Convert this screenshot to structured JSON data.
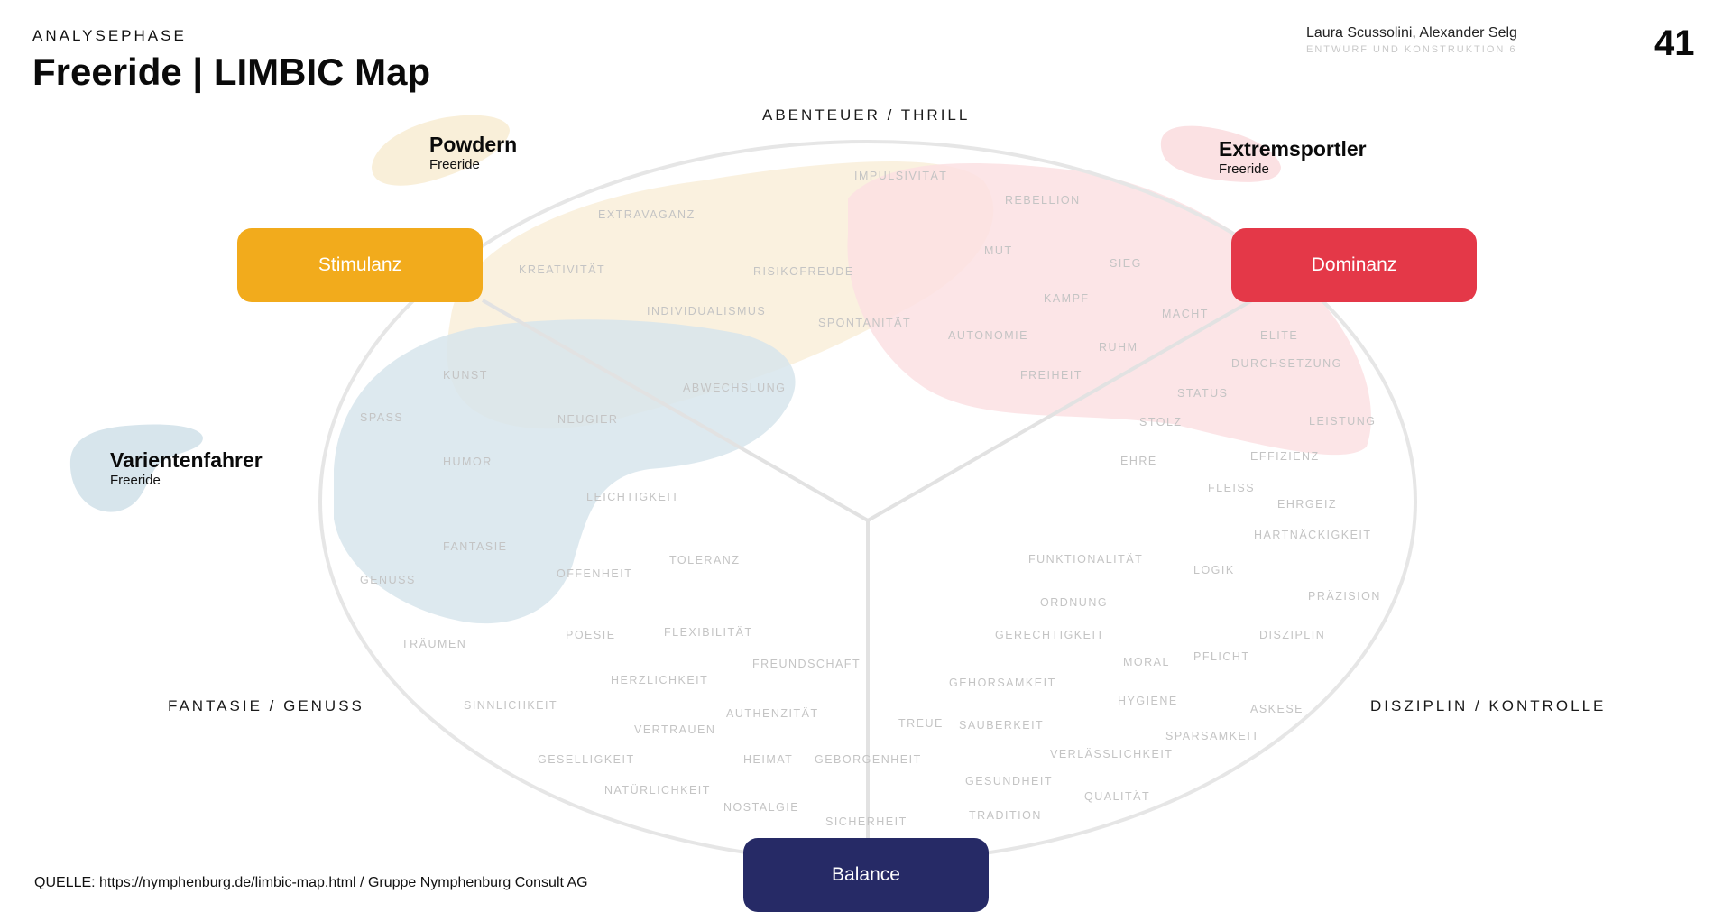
{
  "header": {
    "kicker": "ANALYSEPHASE",
    "title": "Freeride | LIMBIC Map",
    "authors": "Laura Scussolini, Alexander Selg",
    "course": "ENTWURF UND KONSTRUKTION 6",
    "page_number": "41"
  },
  "axes": {
    "top": "ABENTEUER / THRILL",
    "left": "FANTASIE / GENUSS",
    "right": "DISZIPLIN / KONTROLLE"
  },
  "segments": [
    {
      "name": "Powdern",
      "sub": "Freeride",
      "color": "#f9efd9"
    },
    {
      "name": "Extremsportler",
      "sub": "Freeride",
      "color": "#fbe1e3"
    },
    {
      "name": "Varientenfahrer",
      "sub": "Freeride",
      "color": "#d7e5ec"
    }
  ],
  "buttons": {
    "stimulanz": {
      "label": "Stimulanz",
      "color": "#f2ab1c"
    },
    "dominanz": {
      "label": "Dominanz",
      "color": "#e43848"
    },
    "balance": {
      "label": "Balance",
      "color": "#262a66"
    }
  },
  "values": [
    "IMPULSIVITÄT",
    "REBELLION",
    "EXTRAVAGANZ",
    "KREATIVITÄT",
    "RISIKOFREUDE",
    "MUT",
    "SIEG",
    "INDIVIDUALISMUS",
    "KAMPF",
    "SPONTANITÄT",
    "MACHT",
    "AUTONOMIE",
    "ELITE",
    "RUHM",
    "DURCHSETZUNG",
    "KUNST",
    "FREIHEIT",
    "ABWECHSLUNG",
    "STATUS",
    "SPASS",
    "NEUGIER",
    "STOLZ",
    "LEISTUNG",
    "HUMOR",
    "EHRE",
    "EFFIZIENZ",
    "FLEISS",
    "LEICHTIGKEIT",
    "EHRGEIZ",
    "HARTNÄCKIGKEIT",
    "FANTASIE",
    "FUNKTIONALITÄT",
    "TOLERANZ",
    "LOGIK",
    "GENUSS",
    "OFFENHEIT",
    "PRÄZISION",
    "ORDNUNG",
    "FLEXIBILITÄT",
    "POESIE",
    "GERECHTIGKEIT",
    "DISZIPLIN",
    "TRÄUMEN",
    "MORAL",
    "PFLICHT",
    "FREUNDSCHAFT",
    "HERZLICHKEIT",
    "GEHORSAMKEIT",
    "HYGIENE",
    "SINNLICHKEIT",
    "ASKESE",
    "AUTHENZITÄT",
    "TREUE",
    "SAUBERKEIT",
    "VERTRAUEN",
    "SPARSAMKEIT",
    "VERLÄSSLICHKEIT",
    "GESELLIGKEIT",
    "HEIMAT",
    "GEBORGENHEIT",
    "GESUNDHEIT",
    "NATÜRLICHKEIT",
    "QUALITÄT",
    "NOSTALGIE",
    "TRADITION",
    "SICHERHEIT"
  ],
  "source": "QUELLE: https://nymphenburg.de/limbic-map.html / Gruppe Nymphenburg Consult AG"
}
